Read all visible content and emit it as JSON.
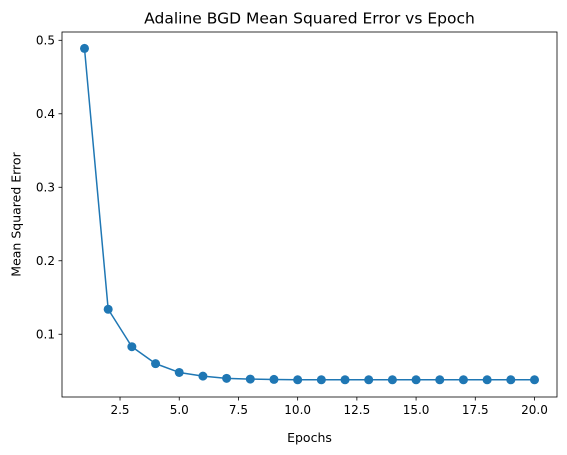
{
  "chart_data": {
    "type": "line",
    "title": "Adaline BGD Mean Squared Error vs Epoch",
    "xlabel": "Epochs",
    "ylabel": "Mean Squared Error",
    "xlim": [
      0.05,
      20.95
    ],
    "ylim": [
      0.0146,
      0.5113
    ],
    "xticks": [
      2.5,
      5.0,
      7.5,
      10.0,
      12.5,
      15.0,
      17.5,
      20.0
    ],
    "xtick_labels": [
      "2.5",
      "5.0",
      "7.5",
      "10.0",
      "12.5",
      "15.0",
      "17.5",
      "20.0"
    ],
    "yticks": [
      0.1,
      0.2,
      0.3,
      0.4,
      0.5
    ],
    "ytick_labels": [
      "0.1",
      "0.2",
      "0.3",
      "0.4",
      "0.5"
    ],
    "grid": false,
    "marker": "circle",
    "color": "#1f77b4",
    "series": [
      {
        "x": [
          1,
          2,
          3,
          4,
          5,
          6,
          7,
          8,
          9,
          10,
          11,
          12,
          13,
          14,
          15,
          16,
          17,
          18,
          19,
          20
        ],
        "y": [
          0.489,
          0.134,
          0.083,
          0.06,
          0.048,
          0.043,
          0.04,
          0.039,
          0.0385,
          0.038,
          0.038,
          0.038,
          0.038,
          0.038,
          0.038,
          0.038,
          0.038,
          0.038,
          0.038,
          0.038
        ]
      }
    ]
  }
}
